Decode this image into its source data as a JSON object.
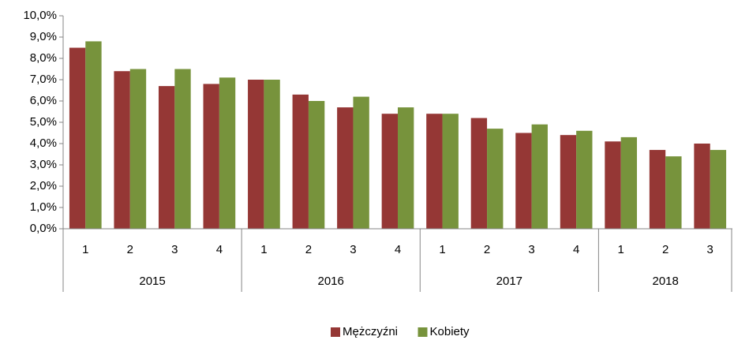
{
  "chart_data": {
    "type": "bar",
    "groups": [
      {
        "name": "2015",
        "categories": [
          "1",
          "2",
          "3",
          "4"
        ]
      },
      {
        "name": "2016",
        "categories": [
          "1",
          "2",
          "3",
          "4"
        ]
      },
      {
        "name": "2017",
        "categories": [
          "1",
          "2",
          "3",
          "4"
        ]
      },
      {
        "name": "2018",
        "categories": [
          "1",
          "2",
          "3"
        ]
      }
    ],
    "series": [
      {
        "name": "Mężczyźni",
        "color": "#953735",
        "values": [
          8.5,
          7.4,
          6.7,
          6.8,
          7.0,
          6.3,
          5.7,
          5.4,
          5.4,
          5.2,
          4.5,
          4.4,
          4.1,
          3.7,
          4.0
        ]
      },
      {
        "name": "Kobiety",
        "color": "#77933c",
        "values": [
          8.8,
          7.5,
          7.5,
          7.1,
          7.0,
          6.0,
          6.2,
          5.7,
          5.4,
          4.7,
          4.9,
          4.6,
          4.3,
          3.4,
          3.7
        ]
      }
    ],
    "ylim": [
      0,
      10
    ],
    "yticks": [
      {
        "value": 0,
        "label": "0,0%"
      },
      {
        "value": 1,
        "label": "1,0%"
      },
      {
        "value": 2,
        "label": "2,0%"
      },
      {
        "value": 3,
        "label": "3,0%"
      },
      {
        "value": 4,
        "label": "4,0%"
      },
      {
        "value": 5,
        "label": "5,0%"
      },
      {
        "value": 6,
        "label": "6,0%"
      },
      {
        "value": 7,
        "label": "7,0%"
      },
      {
        "value": 8,
        "label": "8,0%"
      },
      {
        "value": 9,
        "label": "9,0%"
      },
      {
        "value": 10,
        "label": "10,0%"
      }
    ],
    "grid": false,
    "legend": "bottom"
  }
}
